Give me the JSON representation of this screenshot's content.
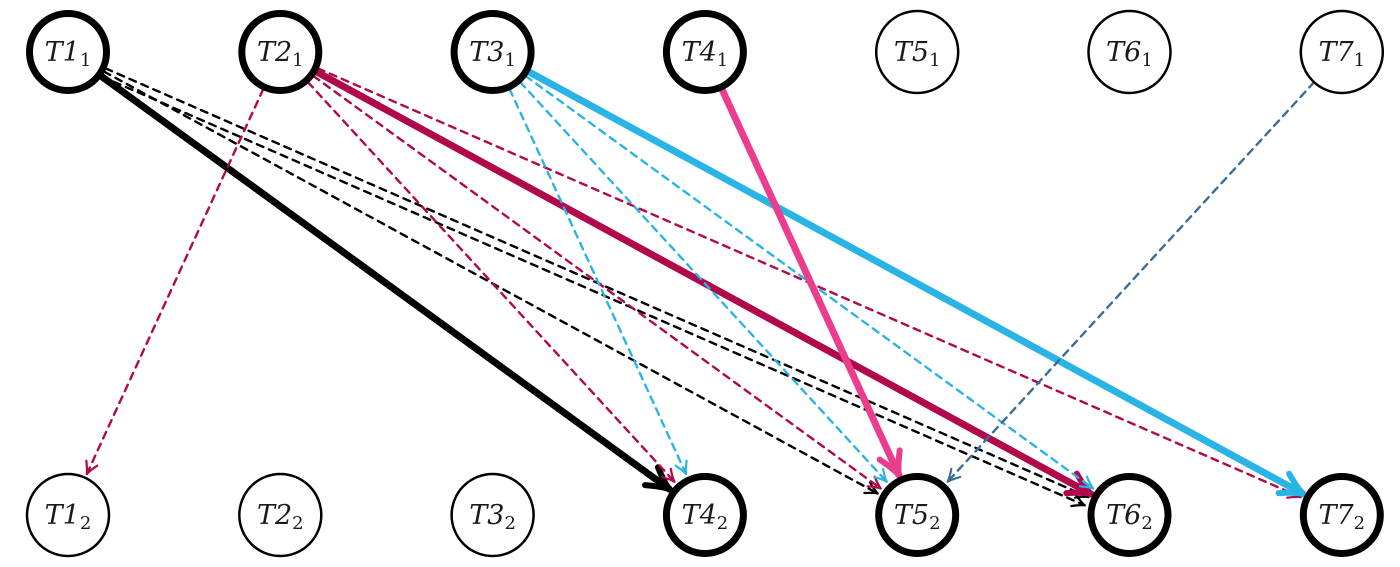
{
  "colors": {
    "black": "#000000",
    "crimson": "#b0084a",
    "cyan": "#2ab4e6",
    "pink": "#ea3d8e",
    "steel": "#3d6d97"
  },
  "nodes": [
    {
      "id": "T1_1",
      "base": "T1",
      "sub": "1",
      "level": "top",
      "emphasis": "bold"
    },
    {
      "id": "T2_1",
      "base": "T2",
      "sub": "1",
      "level": "top",
      "emphasis": "bold"
    },
    {
      "id": "T3_1",
      "base": "T3",
      "sub": "1",
      "level": "top",
      "emphasis": "bold"
    },
    {
      "id": "T4_1",
      "base": "T4",
      "sub": "1",
      "level": "top",
      "emphasis": "bold"
    },
    {
      "id": "T5_1",
      "base": "T5",
      "sub": "1",
      "level": "top",
      "emphasis": "normal"
    },
    {
      "id": "T6_1",
      "base": "T6",
      "sub": "1",
      "level": "top",
      "emphasis": "normal"
    },
    {
      "id": "T7_1",
      "base": "T7",
      "sub": "1",
      "level": "top",
      "emphasis": "normal"
    },
    {
      "id": "T1_2",
      "base": "T1",
      "sub": "2",
      "level": "bottom",
      "emphasis": "normal"
    },
    {
      "id": "T2_2",
      "base": "T2",
      "sub": "2",
      "level": "bottom",
      "emphasis": "normal"
    },
    {
      "id": "T3_2",
      "base": "T3",
      "sub": "2",
      "level": "bottom",
      "emphasis": "normal"
    },
    {
      "id": "T4_2",
      "base": "T4",
      "sub": "2",
      "level": "bottom",
      "emphasis": "bold"
    },
    {
      "id": "T5_2",
      "base": "T5",
      "sub": "2",
      "level": "bottom",
      "emphasis": "bold"
    },
    {
      "id": "T6_2",
      "base": "T6",
      "sub": "2",
      "level": "bottom",
      "emphasis": "bold"
    },
    {
      "id": "T7_2",
      "base": "T7",
      "sub": "2",
      "level": "bottom",
      "emphasis": "bold"
    }
  ],
  "edges": [
    {
      "from": "T1_1",
      "to": "T4_2",
      "style": "solid",
      "color": "black"
    },
    {
      "from": "T1_1",
      "to": "T5_2",
      "style": "dashed",
      "color": "black"
    },
    {
      "from": "T1_1",
      "to": "T6_2",
      "style": "dashed",
      "color": "black"
    },
    {
      "from": "T1_1",
      "to": "T6_2",
      "style": "dashed",
      "color": "black"
    },
    {
      "from": "T2_1",
      "to": "T1_2",
      "style": "dashed",
      "color": "crimson"
    },
    {
      "from": "T2_1",
      "to": "T4_2",
      "style": "dashed",
      "color": "crimson"
    },
    {
      "from": "T2_1",
      "to": "T5_2",
      "style": "dashed",
      "color": "crimson"
    },
    {
      "from": "T2_1",
      "to": "T6_2",
      "style": "solid",
      "color": "crimson"
    },
    {
      "from": "T2_1",
      "to": "T7_2",
      "style": "dashed",
      "color": "crimson"
    },
    {
      "from": "T3_1",
      "to": "T4_2",
      "style": "dashed",
      "color": "cyan"
    },
    {
      "from": "T3_1",
      "to": "T5_2",
      "style": "dashed",
      "color": "cyan"
    },
    {
      "from": "T3_1",
      "to": "T6_2",
      "style": "dashed",
      "color": "cyan"
    },
    {
      "from": "T3_1",
      "to": "T7_2",
      "style": "solid",
      "color": "cyan"
    },
    {
      "from": "T4_1",
      "to": "T5_2",
      "style": "solid",
      "color": "pink"
    },
    {
      "from": "T7_1",
      "to": "T5_2",
      "style": "dashed",
      "color": "steel"
    }
  ]
}
